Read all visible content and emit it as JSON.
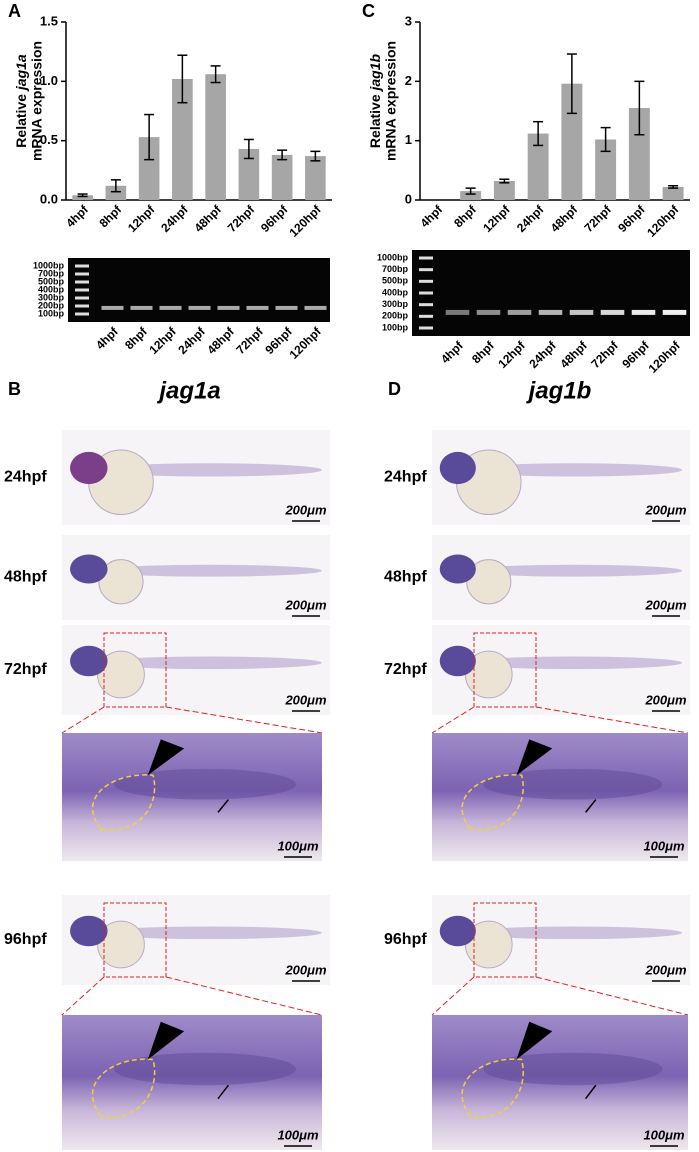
{
  "chart_data": [
    {
      "type": "bar",
      "panel": "A",
      "y_label": [
        "Relative ",
        "jag1a",
        "mRNA expression"
      ],
      "categories": [
        "4hpf",
        "8hpf",
        "12hpf",
        "24hpf",
        "48hpf",
        "72hpf",
        "96hpf",
        "120hpf"
      ],
      "values": [
        0.04,
        0.12,
        0.53,
        1.02,
        1.06,
        0.43,
        0.38,
        0.37
      ],
      "errors": [
        0.01,
        0.05,
        0.19,
        0.2,
        0.07,
        0.08,
        0.04,
        0.04
      ],
      "color": "#a6a6a6",
      "ylim": [
        0,
        1.5
      ],
      "yticks": [
        {
          "value": 0,
          "label": "0.0"
        },
        0.5,
        {
          "value": 1,
          "label": "1.0"
        },
        1.5
      ]
    },
    {
      "type": "bar",
      "panel": "C",
      "y_label": [
        "Relative ",
        "jag1b",
        "mRNA expression"
      ],
      "categories": [
        "4hpf",
        "8hpf",
        "12hpf",
        "24hpf",
        "48hpf",
        "72hpf",
        "96hpf",
        "120hpf"
      ],
      "values": [
        0,
        0.15,
        0.32,
        1.12,
        1.96,
        1.02,
        1.55,
        0.22
      ],
      "errors": [
        0,
        0.05,
        0.03,
        0.2,
        0.5,
        0.2,
        0.45,
        0.02
      ],
      "color": "#a6a6a6",
      "ylim": [
        0,
        3
      ],
      "yticks": [
        0,
        1,
        2,
        3
      ]
    }
  ],
  "gels": [
    {
      "ladder": [
        "1000bp",
        "700bp",
        "500bp",
        "400bp",
        "300bp",
        "200bp",
        "100bp"
      ],
      "lanes": [
        "4hpf",
        "8hpf",
        "12hpf",
        "24hpf",
        "48hpf",
        "72hpf",
        "96hpf",
        "120hpf"
      ]
    },
    {
      "ladder": [
        "1000bp",
        "700bp",
        "500bp",
        "400bp",
        "300bp",
        "200bp",
        "100bp"
      ],
      "lanes": [
        "4hpf",
        "8hpf",
        "12hpf",
        "24hpf",
        "48hpf",
        "72hpf",
        "96hpf",
        "120hpf"
      ]
    }
  ],
  "ish": [
    {
      "panel": "B",
      "title": "jag1a",
      "rows": [
        "24hpf",
        "48hpf",
        "72hpf",
        "96hpf"
      ],
      "scale_bars": [
        "200μm",
        "200μm",
        "200μm",
        "100μm",
        "200μm",
        "100μm"
      ]
    },
    {
      "panel": "D",
      "title": "jag1b",
      "rows": [
        "24hpf",
        "48hpf",
        "72hpf",
        "96hpf"
      ],
      "scale_bars": [
        "200μm",
        "200μm",
        "200μm",
        "100μm",
        "200μm",
        "100μm"
      ]
    }
  ]
}
